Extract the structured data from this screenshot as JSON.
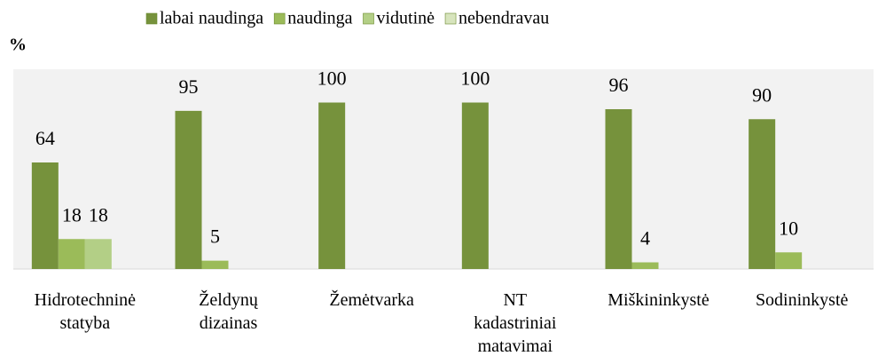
{
  "chart_data": {
    "type": "bar",
    "ylabel": "%",
    "categories": [
      "Hidrotechninė statyba",
      "Želdynų dizainas",
      "Žemėtvarka",
      "NT kadastriniai matavimai",
      "Miškininkystė",
      "Sodininkystė"
    ],
    "series": [
      {
        "name": "labai naudinga",
        "color": "#76923c",
        "values": [
          64,
          95,
          100,
          100,
          96,
          90
        ]
      },
      {
        "name": "naudinga",
        "color": "#9bbb59",
        "values": [
          18,
          5,
          null,
          null,
          4,
          10
        ]
      },
      {
        "name": "vidutinė",
        "color": "#b3cf86",
        "values": [
          18,
          null,
          null,
          null,
          null,
          null
        ]
      },
      {
        "name": "nebendravau",
        "color": "#d7e4bd",
        "values": [
          null,
          null,
          null,
          null,
          null,
          null
        ]
      }
    ],
    "ylim": [
      0,
      120
    ],
    "legend": "top"
  }
}
